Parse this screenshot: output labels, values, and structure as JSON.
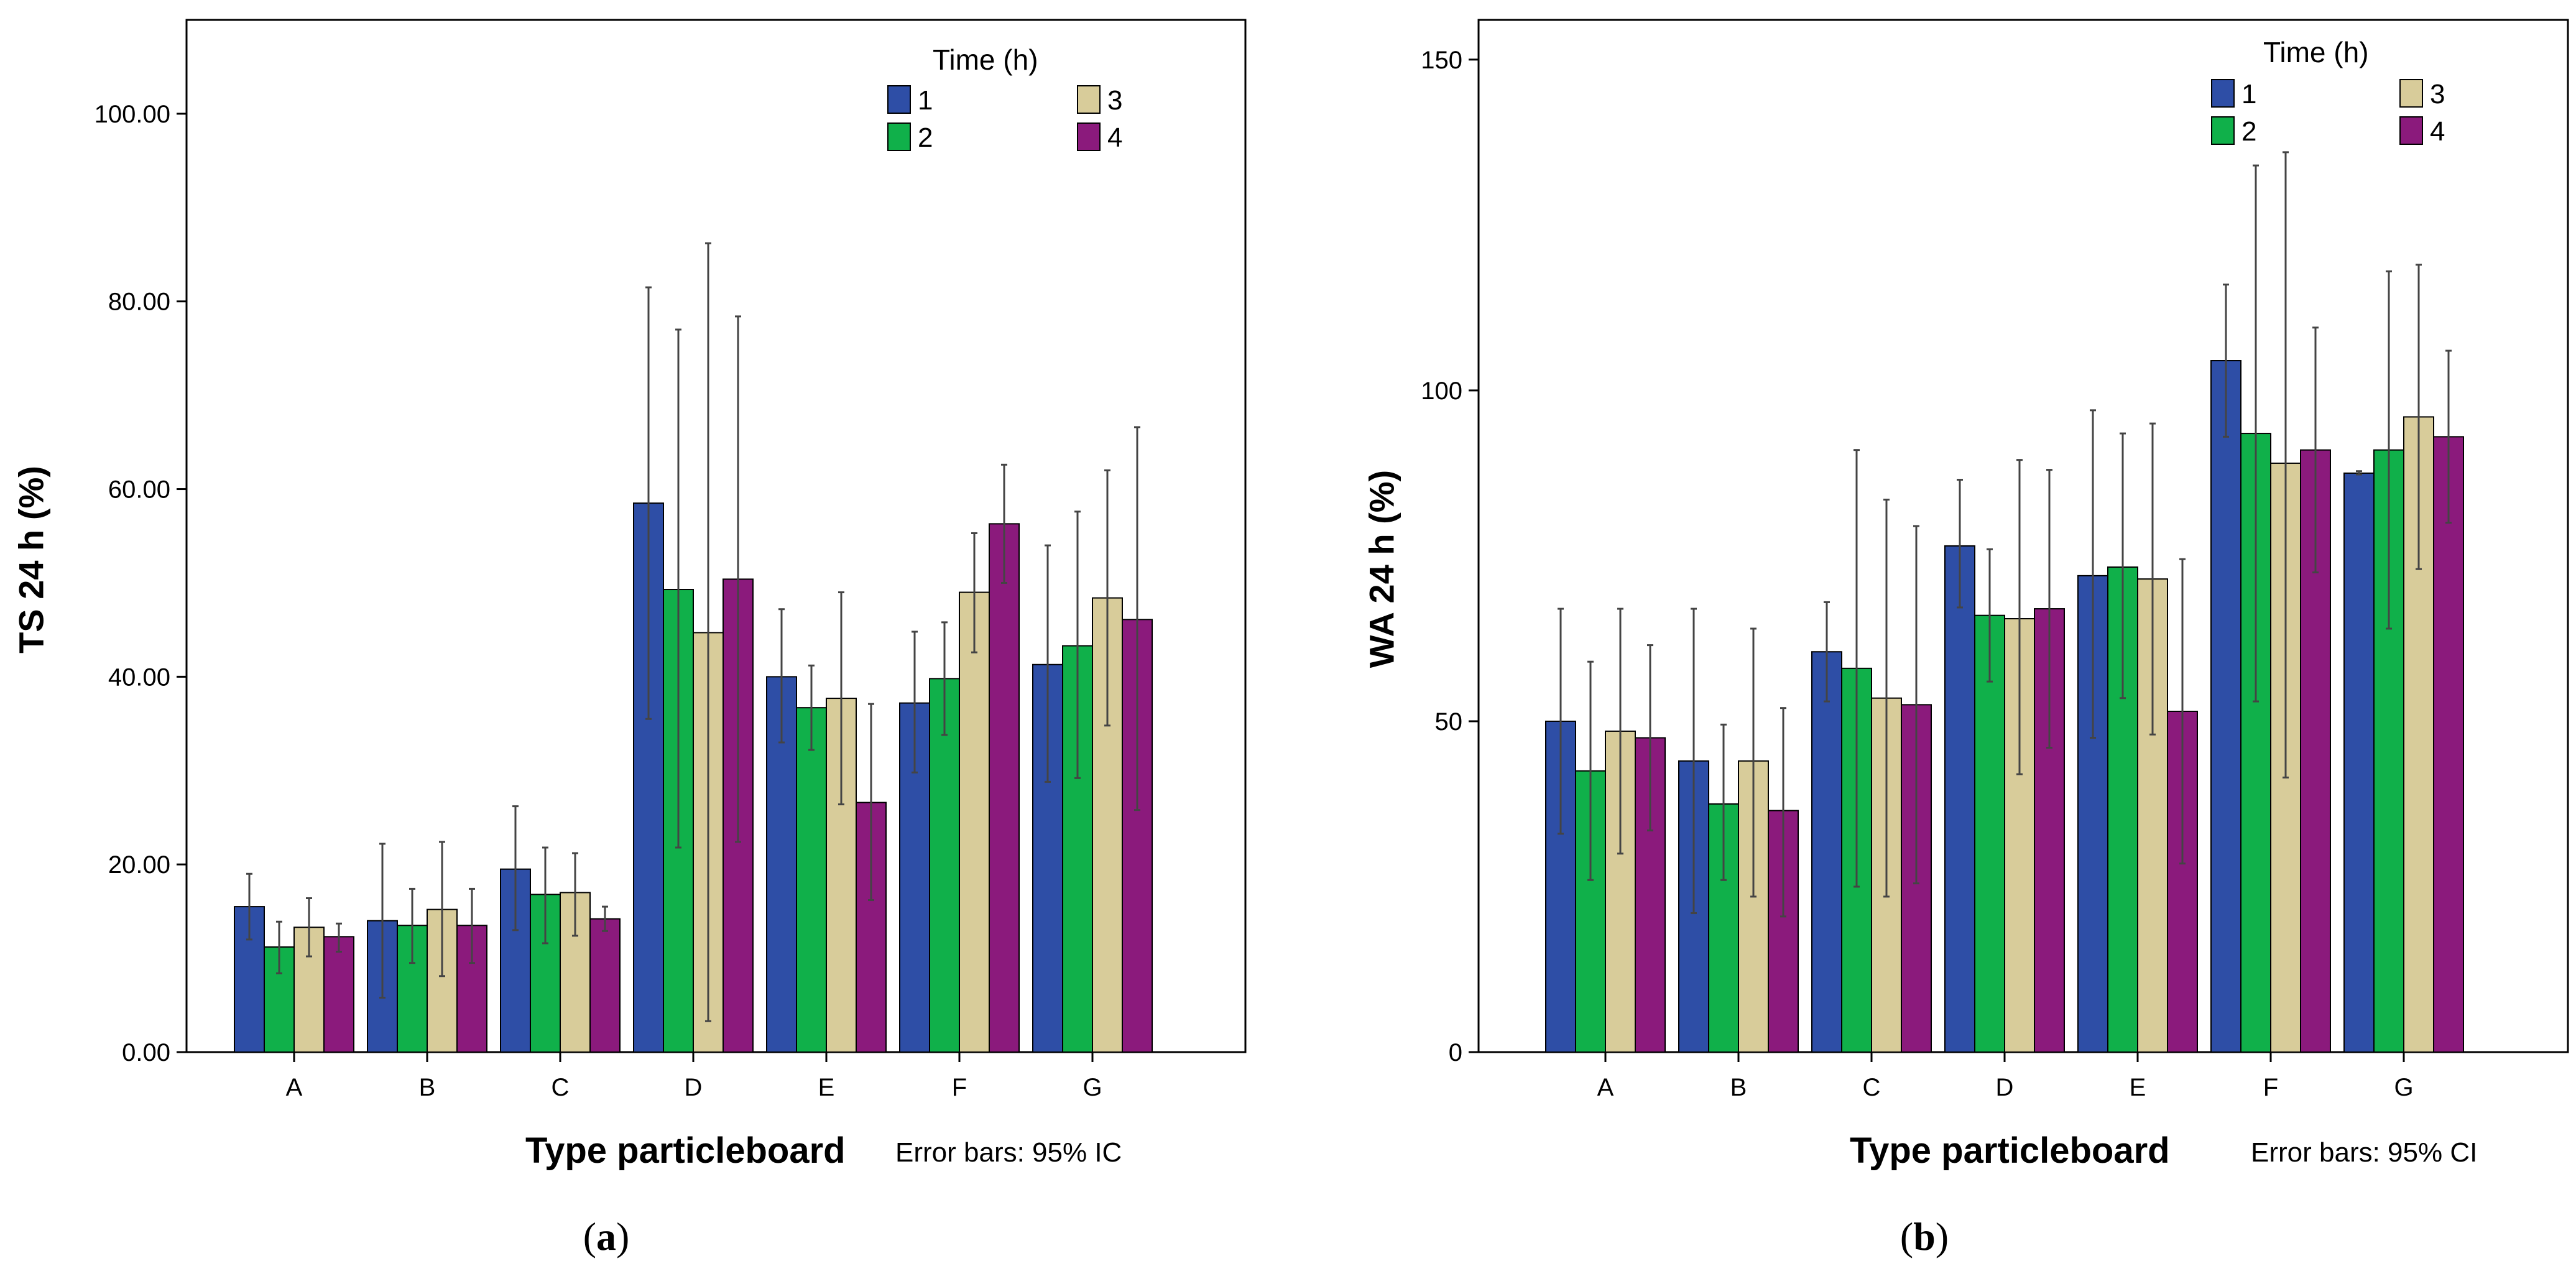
{
  "palette": {
    "1": "#2e4ea6",
    "2": "#10b04a",
    "3": "#d8cc9a",
    "4": "#8b1a7c",
    "axis": "#000000",
    "error": "#444444"
  },
  "chart_data": [
    {
      "id": "a",
      "type": "bar",
      "caption_letter": "a",
      "ylabel": "TS 24 h (%)",
      "xlabel": "Type particleboard",
      "note": "Error bars: 95% IC",
      "legend_title": "Time (h)",
      "legend_position": "top-right",
      "ylim": [
        0,
        110
      ],
      "yticks": [
        0,
        20,
        40,
        60,
        80,
        100
      ],
      "ytick_labels": [
        "0.00",
        "20.00",
        "40.00",
        "60.00",
        "80.00",
        "100.00"
      ],
      "categories": [
        "A",
        "B",
        "C",
        "D",
        "E",
        "F",
        "G"
      ],
      "series": [
        {
          "name": "1",
          "values": [
            15.5,
            14,
            19.5,
            58.5,
            40,
            37.2,
            41.3
          ],
          "err_low": [
            12,
            5.8,
            13,
            35.5,
            33,
            29.8,
            28.8
          ],
          "err_high": [
            19,
            22.2,
            26.2,
            81.5,
            47.2,
            44.8,
            54
          ]
        },
        {
          "name": "2",
          "values": [
            11.2,
            13.5,
            16.8,
            49.3,
            36.7,
            39.8,
            43.3
          ],
          "err_low": [
            8.4,
            9.5,
            11.6,
            21.8,
            32.2,
            33.8,
            29.2
          ],
          "err_high": [
            13.9,
            17.4,
            21.8,
            77,
            41.2,
            45.8,
            57.6
          ]
        },
        {
          "name": "3",
          "values": [
            13.3,
            15.2,
            17,
            44.7,
            37.7,
            49,
            48.4
          ],
          "err_low": [
            10.2,
            8.1,
            12.4,
            3.3,
            26.4,
            42.6,
            34.8
          ],
          "err_high": [
            16.4,
            22.4,
            21.2,
            86.2,
            49,
            55.3,
            62
          ]
        },
        {
          "name": "4",
          "values": [
            12.3,
            13.5,
            14.2,
            50.4,
            26.6,
            56.3,
            46.1
          ],
          "err_low": [
            10.7,
            9.5,
            12.9,
            22.4,
            16.2,
            50,
            25.8
          ],
          "err_high": [
            13.7,
            17.4,
            15.5,
            78.4,
            37.1,
            62.6,
            66.6
          ]
        }
      ]
    },
    {
      "id": "b",
      "type": "bar",
      "caption_letter": "b",
      "ylabel": "WA 24 h (%)",
      "xlabel": "Type particleboard",
      "note": "Error bars: 95% CI",
      "legend_title": "Time (h)",
      "legend_position": "top-right",
      "ylim": [
        0,
        156
      ],
      "yticks": [
        0,
        50,
        100,
        150
      ],
      "ytick_labels": [
        "0",
        "50",
        "100",
        "150"
      ],
      "categories": [
        "A",
        "B",
        "C",
        "D",
        "E",
        "F",
        "G"
      ],
      "series": [
        {
          "name": "1",
          "values": [
            50,
            44,
            60.5,
            76.5,
            72,
            104.5,
            87.5
          ],
          "err_low": [
            33,
            21,
            53,
            67.2,
            47.5,
            93,
            87.3
          ],
          "err_high": [
            67,
            67,
            68,
            86.5,
            97,
            116,
            87.8
          ]
        },
        {
          "name": "2",
          "values": [
            42.5,
            37.5,
            58,
            66,
            73.3,
            93.5,
            91
          ],
          "err_low": [
            26,
            26,
            25,
            56,
            53.5,
            53,
            64
          ],
          "err_high": [
            59,
            49.5,
            91,
            76,
            93.5,
            134,
            118
          ]
        },
        {
          "name": "3",
          "values": [
            48.5,
            44,
            53.5,
            65.5,
            71.5,
            89,
            96
          ],
          "err_low": [
            30,
            23.5,
            23.5,
            42,
            48,
            41.5,
            73
          ],
          "err_high": [
            67,
            64,
            83.5,
            89.5,
            95,
            136,
            119
          ]
        },
        {
          "name": "4",
          "values": [
            47.5,
            36.5,
            52.5,
            67,
            51.5,
            91,
            93
          ],
          "err_low": [
            33.5,
            20.5,
            25.5,
            46,
            28.5,
            72.5,
            80
          ],
          "err_high": [
            61.5,
            52,
            79.5,
            88,
            74.5,
            109.5,
            106
          ]
        }
      ]
    }
  ]
}
